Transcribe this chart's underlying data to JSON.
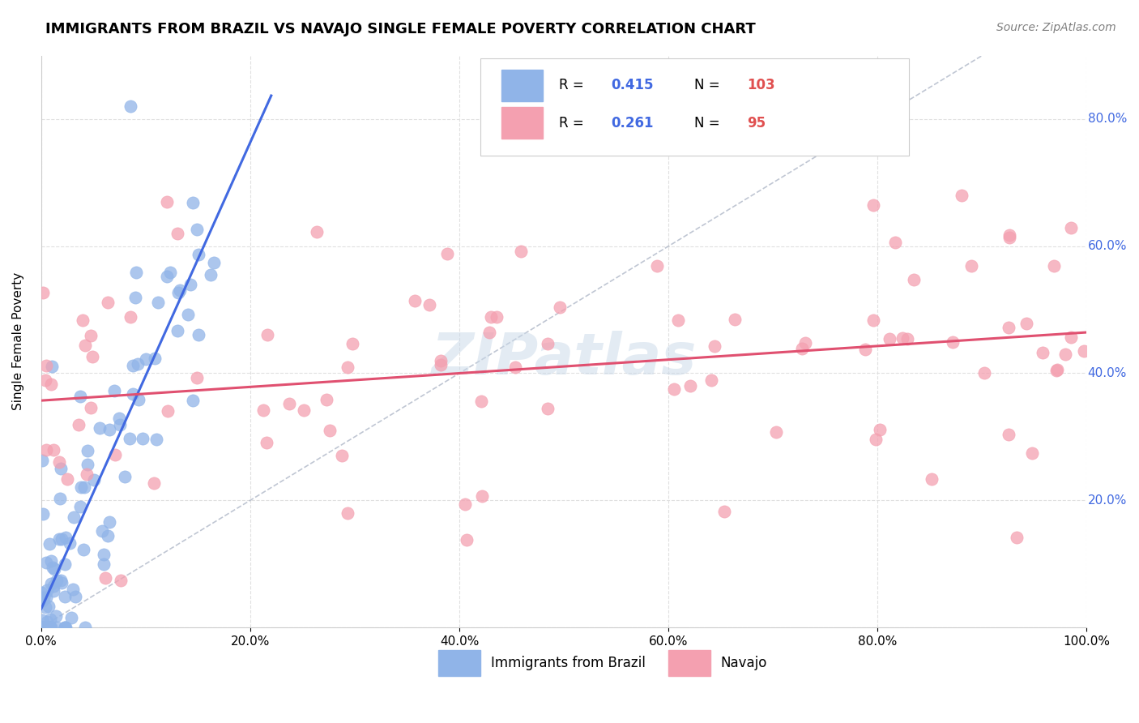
{
  "title": "IMMIGRANTS FROM BRAZIL VS NAVAJO SINGLE FEMALE POVERTY CORRELATION CHART",
  "source": "Source: ZipAtlas.com",
  "xlabel_ticks": [
    "0.0%",
    "20.0%",
    "40.0%",
    "60.0%",
    "80.0%",
    "100.0%"
  ],
  "ylabel_ticks": [
    "20.0%",
    "40.0%",
    "60.0%",
    "80.0%"
  ],
  "xlabel_label": "",
  "ylabel_label": "Single Female Poverty",
  "brazil_R": 0.415,
  "brazil_N": 103,
  "navajo_R": 0.261,
  "navajo_N": 95,
  "brazil_color": "#90b4e8",
  "navajo_color": "#f4a0b0",
  "brazil_line_color": "#4169e1",
  "navajo_line_color": "#e05070",
  "diagonal_color": "#b0b8c8",
  "legend_label_brazil": "Immigrants from Brazil",
  "legend_label_navajo": "Navajo",
  "title_fontsize": 13,
  "source_fontsize": 10,
  "axis_label_fontsize": 11,
  "tick_fontsize": 11,
  "legend_fontsize": 12,
  "watermark_text": "ZIPatlas",
  "watermark_color": "#c8d8e8",
  "watermark_alpha": 0.5,
  "background_color": "#ffffff",
  "grid_color": "#e0e0e0",
  "xlim": [
    0.0,
    1.0
  ],
  "ylim": [
    0.0,
    0.9
  ]
}
